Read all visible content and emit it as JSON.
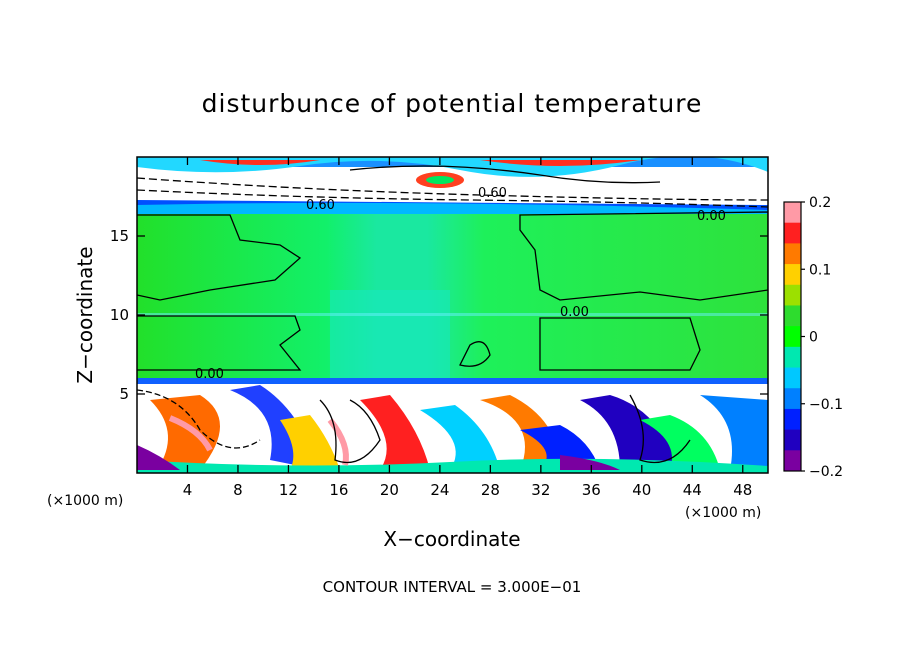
{
  "chart_data": {
    "type": "heatmap",
    "title": "disturbunce of potential temperature",
    "xlabel": "X−coordinate",
    "ylabel": "Z−coordinate",
    "x_unit": "(×1000 m)",
    "y_unit": "(×1000 m)",
    "xlim": [
      0,
      50
    ],
    "ylim": [
      0,
      20
    ],
    "xticks": [
      4,
      8,
      12,
      16,
      20,
      24,
      28,
      32,
      36,
      40,
      44,
      48
    ],
    "yticks": [
      5,
      10,
      15
    ],
    "colorbar": {
      "min": -0.2,
      "max": 0.2,
      "ticks": [
        "0.2",
        "0.1",
        "0",
        "−0.1",
        "−0.2"
      ],
      "colors": [
        "#ff9aa6",
        "#ff2020",
        "#ff7a00",
        "#ffd000",
        "#9ce000",
        "#2edc2e",
        "#00ff00",
        "#00e8b0",
        "#00c8ff",
        "#0080ff",
        "#0020ff",
        "#2000c0",
        "#7a00a0"
      ]
    },
    "contour_labels": [
      "0.60",
      "0.60",
      "0.00",
      "0.00",
      "0.00"
    ],
    "footer": "CONTOUR INTERVAL = 3.000E−01",
    "regions": [
      {
        "band": "upper layer",
        "z": [
          17,
          20
        ],
        "dominant": "white/positive with cyan-blue edges"
      },
      {
        "band": "middle layer",
        "z": [
          6,
          16.5
        ],
        "dominant": "green (near 0)"
      },
      {
        "band": "lower layer",
        "z": [
          0,
          6
        ],
        "dominant": "mixed turbulent -0.2 to 0.2"
      }
    ]
  }
}
